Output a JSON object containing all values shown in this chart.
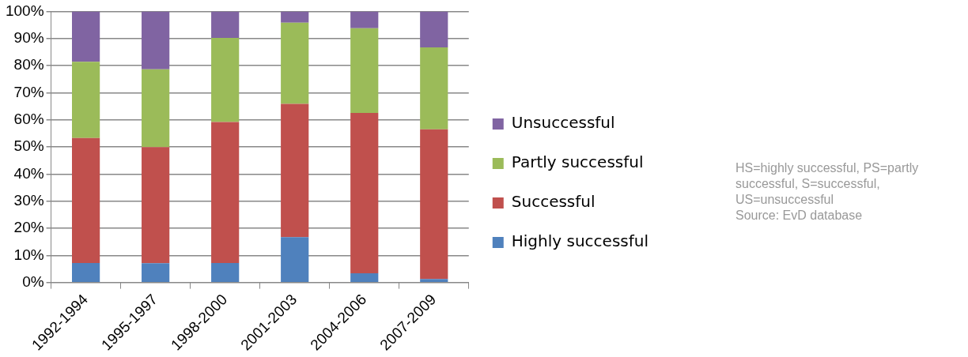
{
  "chart_data": {
    "type": "bar",
    "stacked": true,
    "categories": [
      "1992-1994",
      "1995-1997",
      "1998-2000",
      "2001-2003",
      "2004-2006",
      "2007-2009"
    ],
    "series": [
      {
        "name": "Highly successful",
        "color": "#4f81bd",
        "values": [
          7.2,
          7.1,
          7.2,
          16.7,
          3.4,
          1.3
        ]
      },
      {
        "name": "Successful",
        "color": "#c0504d",
        "values": [
          46.1,
          42.8,
          52,
          49.2,
          59.1,
          55.2
        ]
      },
      {
        "name": "Partly successful",
        "color": "#9bbb59",
        "values": [
          28.1,
          28.7,
          31,
          29.9,
          31.3,
          30.2
        ]
      },
      {
        "name": "Unsuccessful",
        "color": "#8064a2",
        "values": [
          18.6,
          21.4,
          9.8,
          4.2,
          6.2,
          13.3
        ]
      }
    ],
    "ylim": [
      0,
      100
    ],
    "yticks": [
      {
        "value": 0,
        "label": "0%"
      },
      {
        "value": 10,
        "label": "10%"
      },
      {
        "value": 20,
        "label": "20%"
      },
      {
        "value": 30,
        "label": "30%"
      },
      {
        "value": 40,
        "label": "40%"
      },
      {
        "value": 50,
        "label": "50%"
      },
      {
        "value": 60,
        "label": "60%"
      },
      {
        "value": 70,
        "label": "70%"
      },
      {
        "value": 80,
        "label": "80%"
      },
      {
        "value": 90,
        "label": "90%"
      },
      {
        "value": 100,
        "label": "100%"
      }
    ],
    "grid": "y",
    "legend": "right",
    "annotations": [
      "HS=highly successful, PS=partly successful, S=successful, US=unsuccessful\nSource: EvD database"
    ]
  }
}
